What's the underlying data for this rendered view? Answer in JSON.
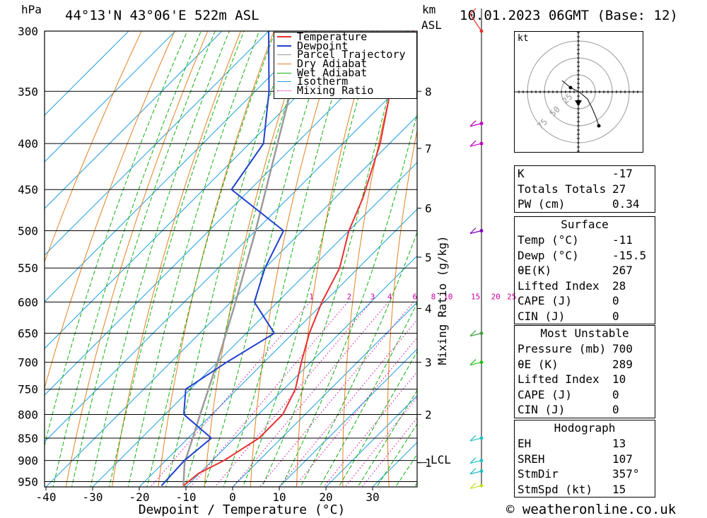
{
  "header": {
    "pressure_unit": "hPa",
    "location": "44°13'N  43°06'E  522m  ASL",
    "km_label": "km",
    "asl_label": "ASL",
    "datetime": "10.01.2023  06GMT  (Base: 12)"
  },
  "chart_data": {
    "type": "skew-t",
    "xlabel": "Dewpoint / Temperature (°C)",
    "ylabel": "hPa",
    "mixing_ratio_label": "Mixing Ratio (g/kg)",
    "pressure_ticks": [
      300,
      350,
      400,
      450,
      500,
      550,
      600,
      650,
      700,
      750,
      800,
      850,
      900,
      950
    ],
    "pressure_range": [
      300,
      960
    ],
    "temperature_range_at_surface": [
      -40,
      40
    ],
    "temperature_ticks": [
      -40,
      -30,
      -20,
      -10,
      0,
      10,
      20,
      30
    ],
    "km_ticks": [
      {
        "km": "8",
        "p": 350
      },
      {
        "km": "7",
        "p": 405
      },
      {
        "km": "6",
        "p": 472
      },
      {
        "km": "5",
        "p": 535
      },
      {
        "km": "4",
        "p": 610
      },
      {
        "km": "3",
        "p": 700
      },
      {
        "km": "2",
        "p": 800
      },
      {
        "km": "1",
        "p": 905
      }
    ],
    "lcl_label": "LCL",
    "lcl_pressure": 905,
    "mixing_ratio_values": [
      "1",
      "2",
      "3",
      "4",
      "6",
      "8",
      "10",
      "15",
      "20",
      "25"
    ],
    "mixing_ratio_numbers": [
      1,
      2,
      3,
      4,
      6,
      8,
      10,
      15,
      20,
      25
    ],
    "legend": [
      "Temperature",
      "Dewpoint",
      "Parcel Trajectory",
      "Dry Adiabat",
      "Wet Adiabat",
      "Isotherm",
      "Mixing Ratio"
    ],
    "temperature_profile": [
      {
        "p": 960,
        "t": -10.8
      },
      {
        "p": 930,
        "t": -10.2
      },
      {
        "p": 900,
        "t": -7.5
      },
      {
        "p": 850,
        "t": -4.8
      },
      {
        "p": 800,
        "t": -4.8
      },
      {
        "p": 750,
        "t": -7.5
      },
      {
        "p": 700,
        "t": -12.0
      },
      {
        "p": 650,
        "t": -16.5
      },
      {
        "p": 600,
        "t": -20.5
      },
      {
        "p": 550,
        "t": -24.0
      },
      {
        "p": 500,
        "t": -30.0
      },
      {
        "p": 460,
        "t": -34.0
      },
      {
        "p": 400,
        "t": -42.0
      },
      {
        "p": 350,
        "t": -51.0
      },
      {
        "p": 300,
        "t": -59.0
      }
    ],
    "dewpoint_profile": [
      {
        "p": 960,
        "t": -15.5
      },
      {
        "p": 900,
        "t": -16.0
      },
      {
        "p": 850,
        "t": -15.0
      },
      {
        "p": 800,
        "t": -26.0
      },
      {
        "p": 750,
        "t": -31.0
      },
      {
        "p": 700,
        "t": -28.0
      },
      {
        "p": 650,
        "t": -24.0
      },
      {
        "p": 600,
        "t": -35.0
      },
      {
        "p": 550,
        "t": -40.0
      },
      {
        "p": 500,
        "t": -44.0
      },
      {
        "p": 450,
        "t": -64.0
      },
      {
        "p": 400,
        "t": -67.0
      },
      {
        "p": 350,
        "t": -77.0
      },
      {
        "p": 300,
        "t": -90.0
      }
    ],
    "parcel_profile": [
      {
        "p": 960,
        "t": -10.8
      },
      {
        "p": 905,
        "t": -15.5
      },
      {
        "p": 850,
        "t": -19.0
      },
      {
        "p": 800,
        "t": -22.5
      },
      {
        "p": 700,
        "t": -30.0
      },
      {
        "p": 600,
        "t": -39.0
      },
      {
        "p": 500,
        "t": -50.0
      },
      {
        "p": 400,
        "t": -64.0
      },
      {
        "p": 300,
        "t": -82.0
      }
    ],
    "wind_levels_hpa": [
      300,
      380,
      400,
      500,
      650,
      700,
      850,
      900,
      925,
      960
    ]
  },
  "hodograph": {
    "unit": "kt",
    "ring_labels": [
      "25",
      "50",
      "75"
    ]
  },
  "indices": {
    "general": [
      {
        "label": "K",
        "value": "-17"
      },
      {
        "label": "Totals Totals",
        "value": "27"
      },
      {
        "label": "PW (cm)",
        "value": "0.34"
      }
    ],
    "surface_title": "Surface",
    "surface": [
      {
        "label": "Temp (°C)",
        "value": "-11"
      },
      {
        "label": "Dewp (°C)",
        "value": "-15.5"
      },
      {
        "label": "θE(K)",
        "value": "267"
      },
      {
        "label": "Lifted Index",
        "value": "28"
      },
      {
        "label": "CAPE (J)",
        "value": "0"
      },
      {
        "label": "CIN (J)",
        "value": "0"
      }
    ],
    "mu_title": "Most Unstable",
    "mu": [
      {
        "label": "Pressure (mb)",
        "value": "700"
      },
      {
        "label": "θE (K)",
        "value": "289"
      },
      {
        "label": "Lifted Index",
        "value": "10"
      },
      {
        "label": "CAPE (J)",
        "value": "0"
      },
      {
        "label": "CIN (J)",
        "value": "0"
      }
    ],
    "hodo_title": "Hodograph",
    "hodo": [
      {
        "label": "EH",
        "value": "13"
      },
      {
        "label": "SREH",
        "value": "107"
      },
      {
        "label": "StmDir",
        "value": "357°"
      },
      {
        "label": "StmSpd (kt)",
        "value": "15"
      }
    ]
  },
  "footer": {
    "copyright": "© weatheronline.co.uk"
  },
  "colors": {
    "temperature": "#e83030",
    "dewpoint": "#2040d0",
    "parcel": "#9a9a9a",
    "dry_adiabat": "#e08020",
    "wet_adiabat": "#10b010",
    "isotherm": "#20a0e0",
    "mixing_ratio": "#d000a0"
  }
}
